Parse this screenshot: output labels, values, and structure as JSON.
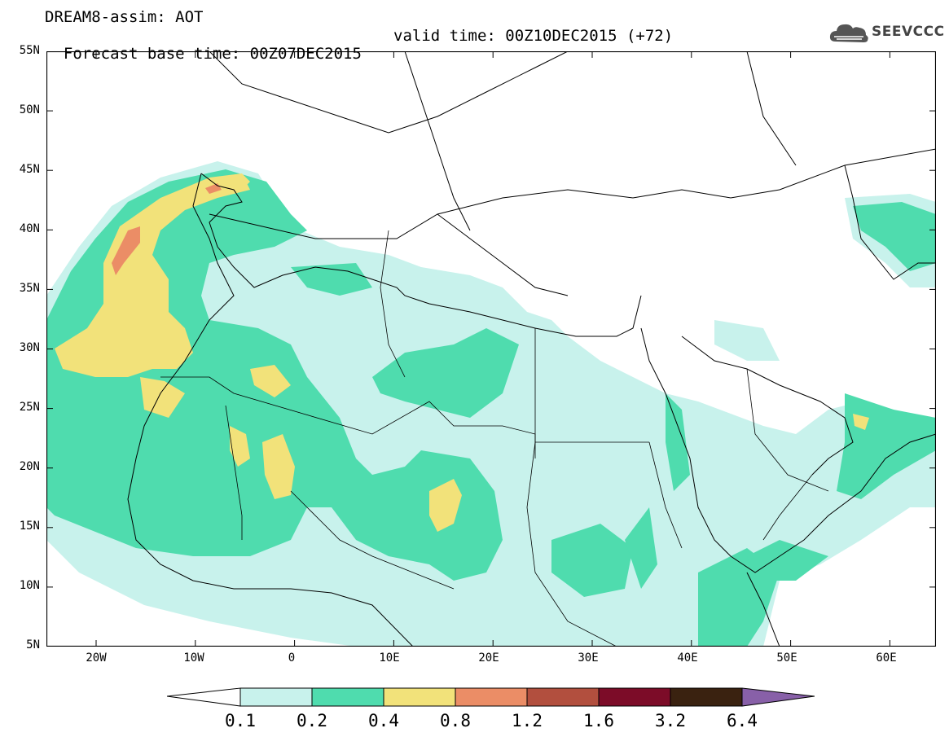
{
  "title_line1": "DREAM8-assim: AOT",
  "title_line2_left": "Forecast base time: 00Z07DEC2015",
  "title_line2_right": "valid time: 00Z10DEC2015 (+72)",
  "logo_text": "SEEVCCC",
  "lat_labels": [
    "55N",
    "50N",
    "45N",
    "40N",
    "35N",
    "30N",
    "25N",
    "20N",
    "15N",
    "10N",
    "5N"
  ],
  "lon_labels": [
    "20W",
    "10W",
    "0",
    "10E",
    "20E",
    "30E",
    "40E",
    "50E",
    "60E"
  ],
  "colorbar": {
    "labels": [
      "0.1",
      "0.2",
      "0.4",
      "0.8",
      "1.2",
      "1.6",
      "3.2",
      "6.4"
    ],
    "colors": [
      "#c8f2ec",
      "#4fdcae",
      "#f2e27a",
      "#eb8d66",
      "#b24f3e",
      "#7c0c28",
      "#3a2210",
      "#8860a8"
    ]
  }
}
